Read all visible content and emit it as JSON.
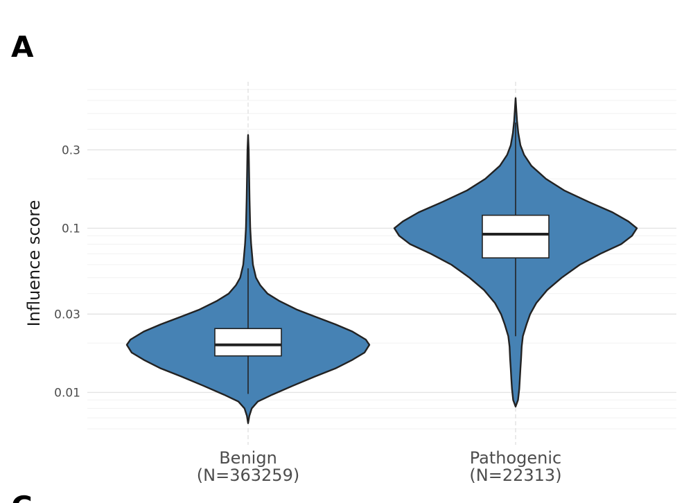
{
  "panel_label": "A",
  "next_panel_label": "C",
  "chart_data": {
    "type": "violin",
    "ylabel": "Influence score",
    "y_scale": "log10",
    "ylim": [
      0.0055,
      0.78
    ],
    "y_ticks": [
      0.01,
      0.03,
      0.1,
      0.3
    ],
    "y_tick_labels": [
      "0.01",
      "0.03",
      "0.1",
      "0.3"
    ],
    "grid": true,
    "fill_color": "#4682b4",
    "categories": [
      {
        "name": "Benign",
        "n_label": "(N=363259)",
        "median": 0.0195,
        "q1": 0.0167,
        "q3": 0.0245,
        "whisker_low": 0.0098,
        "whisker_high": 0.057,
        "violin_min": 0.0065,
        "violin_max": 0.37,
        "density_profile": [
          [
            0.0065,
            0.0
          ],
          [
            0.0072,
            0.01
          ],
          [
            0.008,
            0.03
          ],
          [
            0.0088,
            0.08
          ],
          [
            0.0097,
            0.2
          ],
          [
            0.011,
            0.37
          ],
          [
            0.0125,
            0.55
          ],
          [
            0.014,
            0.72
          ],
          [
            0.0158,
            0.86
          ],
          [
            0.0175,
            0.96
          ],
          [
            0.0195,
            1.0
          ],
          [
            0.021,
            0.97
          ],
          [
            0.0235,
            0.86
          ],
          [
            0.026,
            0.72
          ],
          [
            0.029,
            0.55
          ],
          [
            0.032,
            0.4
          ],
          [
            0.036,
            0.26
          ],
          [
            0.04,
            0.16
          ],
          [
            0.045,
            0.1
          ],
          [
            0.05,
            0.065
          ],
          [
            0.06,
            0.04
          ],
          [
            0.08,
            0.025
          ],
          [
            0.1,
            0.018
          ],
          [
            0.15,
            0.012
          ],
          [
            0.2,
            0.009
          ],
          [
            0.3,
            0.005
          ],
          [
            0.37,
            0.0
          ]
        ]
      },
      {
        "name": "Pathogenic",
        "n_label": "(N=22313)",
        "median": 0.092,
        "q1": 0.066,
        "q3": 0.12,
        "whisker_low": 0.022,
        "whisker_high": 0.44,
        "violin_min": 0.0082,
        "violin_max": 0.62,
        "density_profile": [
          [
            0.0082,
            0.0
          ],
          [
            0.009,
            0.02
          ],
          [
            0.0105,
            0.03
          ],
          [
            0.012,
            0.035
          ],
          [
            0.014,
            0.04
          ],
          [
            0.016,
            0.045
          ],
          [
            0.019,
            0.05
          ],
          [
            0.022,
            0.06
          ],
          [
            0.026,
            0.09
          ],
          [
            0.03,
            0.12
          ],
          [
            0.035,
            0.17
          ],
          [
            0.042,
            0.26
          ],
          [
            0.05,
            0.38
          ],
          [
            0.06,
            0.53
          ],
          [
            0.07,
            0.7
          ],
          [
            0.08,
            0.87
          ],
          [
            0.09,
            0.96
          ],
          [
            0.1,
            1.0
          ],
          [
            0.11,
            0.93
          ],
          [
            0.125,
            0.8
          ],
          [
            0.145,
            0.6
          ],
          [
            0.17,
            0.4
          ],
          [
            0.2,
            0.25
          ],
          [
            0.24,
            0.13
          ],
          [
            0.28,
            0.07
          ],
          [
            0.32,
            0.04
          ],
          [
            0.38,
            0.022
          ],
          [
            0.45,
            0.012
          ],
          [
            0.53,
            0.006
          ],
          [
            0.62,
            0.0
          ]
        ]
      }
    ]
  }
}
